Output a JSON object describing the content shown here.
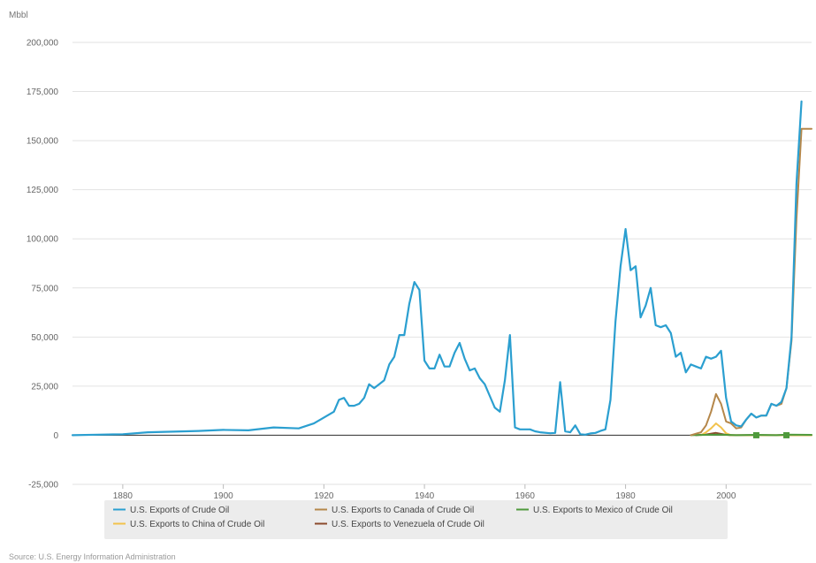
{
  "chart_data": {
    "type": "line",
    "title": "",
    "ylabel": "Mbbl",
    "xlabel": "",
    "xlim": [
      1870,
      2017
    ],
    "ylim": [
      -25000,
      200000
    ],
    "x_ticks": [
      1880,
      1900,
      1920,
      1940,
      1960,
      1980,
      2000
    ],
    "y_ticks": [
      -25000,
      0,
      25000,
      50000,
      75000,
      100000,
      125000,
      150000,
      175000,
      200000
    ],
    "y_tick_labels": [
      "-25,000",
      "0",
      "25,000",
      "50,000",
      "75,000",
      "100,000",
      "125,000",
      "150,000",
      "175,000",
      "200,000"
    ],
    "grid": true,
    "legend_position": "bottom",
    "source": "Source: U.S. Energy Information Administration",
    "series": [
      {
        "name": "U.S. Exports of Crude Oil",
        "color": "#2b9fd0",
        "points": [
          [
            1870,
            0
          ],
          [
            1875,
            300
          ],
          [
            1880,
            500
          ],
          [
            1885,
            1500
          ],
          [
            1890,
            1800
          ],
          [
            1895,
            2200
          ],
          [
            1900,
            2700
          ],
          [
            1905,
            2500
          ],
          [
            1910,
            4000
          ],
          [
            1915,
            3500
          ],
          [
            1918,
            6000
          ],
          [
            1920,
            9000
          ],
          [
            1922,
            12000
          ],
          [
            1923,
            18000
          ],
          [
            1924,
            19000
          ],
          [
            1925,
            15000
          ],
          [
            1926,
            15000
          ],
          [
            1927,
            16000
          ],
          [
            1928,
            19000
          ],
          [
            1929,
            26000
          ],
          [
            1930,
            24000
          ],
          [
            1931,
            26000
          ],
          [
            1932,
            28000
          ],
          [
            1933,
            36000
          ],
          [
            1934,
            40000
          ],
          [
            1935,
            51000
          ],
          [
            1936,
            51000
          ],
          [
            1937,
            67000
          ],
          [
            1938,
            78000
          ],
          [
            1939,
            74000
          ],
          [
            1940,
            38000
          ],
          [
            1941,
            34000
          ],
          [
            1942,
            34000
          ],
          [
            1943,
            41000
          ],
          [
            1944,
            35000
          ],
          [
            1945,
            35000
          ],
          [
            1946,
            42000
          ],
          [
            1947,
            47000
          ],
          [
            1948,
            39000
          ],
          [
            1949,
            33000
          ],
          [
            1950,
            34000
          ],
          [
            1951,
            29000
          ],
          [
            1952,
            26000
          ],
          [
            1953,
            20000
          ],
          [
            1954,
            14000
          ],
          [
            1955,
            12000
          ],
          [
            1956,
            28000
          ],
          [
            1957,
            51000
          ],
          [
            1958,
            4000
          ],
          [
            1959,
            3000
          ],
          [
            1960,
            3000
          ],
          [
            1961,
            3000
          ],
          [
            1962,
            2000
          ],
          [
            1963,
            1500
          ],
          [
            1965,
            1000
          ],
          [
            1966,
            1200
          ],
          [
            1967,
            27000
          ],
          [
            1968,
            2000
          ],
          [
            1969,
            1500
          ],
          [
            1970,
            5000
          ],
          [
            1971,
            500
          ],
          [
            1972,
            300
          ],
          [
            1973,
            900
          ],
          [
            1974,
            1200
          ],
          [
            1975,
            2200
          ],
          [
            1976,
            3000
          ],
          [
            1977,
            18000
          ],
          [
            1978,
            58000
          ],
          [
            1979,
            86000
          ],
          [
            1980,
            105000
          ],
          [
            1981,
            84000
          ],
          [
            1982,
            86000
          ],
          [
            1983,
            60000
          ],
          [
            1984,
            66000
          ],
          [
            1985,
            75000
          ],
          [
            1986,
            56000
          ],
          [
            1987,
            55000
          ],
          [
            1988,
            56000
          ],
          [
            1989,
            52000
          ],
          [
            1990,
            40000
          ],
          [
            1991,
            42000
          ],
          [
            1992,
            32000
          ],
          [
            1993,
            36000
          ],
          [
            1994,
            35000
          ],
          [
            1995,
            34000
          ],
          [
            1996,
            40000
          ],
          [
            1997,
            39000
          ],
          [
            1998,
            40000
          ],
          [
            1999,
            43000
          ],
          [
            2000,
            19000
          ],
          [
            2001,
            7000
          ],
          [
            2002,
            5000
          ],
          [
            2003,
            4500
          ],
          [
            2004,
            8000
          ],
          [
            2005,
            11000
          ],
          [
            2006,
            9000
          ],
          [
            2007,
            10000
          ],
          [
            2008,
            10000
          ],
          [
            2009,
            16000
          ],
          [
            2010,
            15000
          ],
          [
            2011,
            17000
          ],
          [
            2012,
            24000
          ],
          [
            2013,
            50000
          ],
          [
            2014,
            128000
          ],
          [
            2015,
            170000
          ]
        ]
      },
      {
        "name": "U.S. Exports to Canada of Crude Oil",
        "color": "#b5874a",
        "points": [
          [
            1993,
            0
          ],
          [
            1994,
            800
          ],
          [
            1995,
            1500
          ],
          [
            1996,
            5000
          ],
          [
            1997,
            12000
          ],
          [
            1998,
            21000
          ],
          [
            1999,
            16000
          ],
          [
            2000,
            7000
          ],
          [
            2001,
            6000
          ],
          [
            2002,
            3500
          ],
          [
            2003,
            4000
          ],
          [
            2004,
            8000
          ],
          [
            2005,
            11000
          ],
          [
            2006,
            9000
          ],
          [
            2007,
            10000
          ],
          [
            2008,
            10000
          ],
          [
            2009,
            16000
          ],
          [
            2010,
            15000
          ],
          [
            2011,
            16000
          ],
          [
            2012,
            24000
          ],
          [
            2013,
            48000
          ],
          [
            2014,
            110000
          ],
          [
            2015,
            156000
          ],
          [
            2017,
            156000
          ]
        ]
      },
      {
        "name": "U.S. Exports to Mexico of Crude Oil",
        "color": "#4f9a3c",
        "points": [
          [
            1993,
            0
          ],
          [
            1996,
            200
          ],
          [
            1999,
            300
          ],
          [
            2002,
            0
          ],
          [
            2006,
            200
          ],
          [
            2010,
            0
          ],
          [
            2012,
            300
          ],
          [
            2017,
            200
          ]
        ],
        "markers": [
          [
            2006,
            0
          ],
          [
            2012,
            0
          ]
        ]
      },
      {
        "name": "U.S. Exports to China of Crude Oil",
        "color": "#f2c24c",
        "points": [
          [
            1995,
            0
          ],
          [
            1996,
            1500
          ],
          [
            1997,
            3500
          ],
          [
            1998,
            6000
          ],
          [
            1999,
            4000
          ],
          [
            2000,
            1000
          ],
          [
            2001,
            0
          ],
          [
            2017,
            0
          ]
        ]
      },
      {
        "name": "U.S. Exports to Venezuela of Crude Oil",
        "color": "#8b4a2c",
        "points": [
          [
            1994,
            0
          ],
          [
            1996,
            400
          ],
          [
            1998,
            1200
          ],
          [
            2000,
            200
          ],
          [
            2001,
            0
          ],
          [
            2017,
            0
          ]
        ]
      }
    ]
  }
}
